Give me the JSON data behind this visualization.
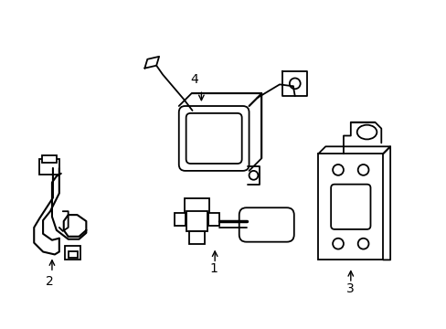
{
  "background_color": "#ffffff",
  "line_color": "#000000",
  "line_width": 1.3,
  "fig_w": 4.89,
  "fig_h": 3.6,
  "dpi": 100
}
